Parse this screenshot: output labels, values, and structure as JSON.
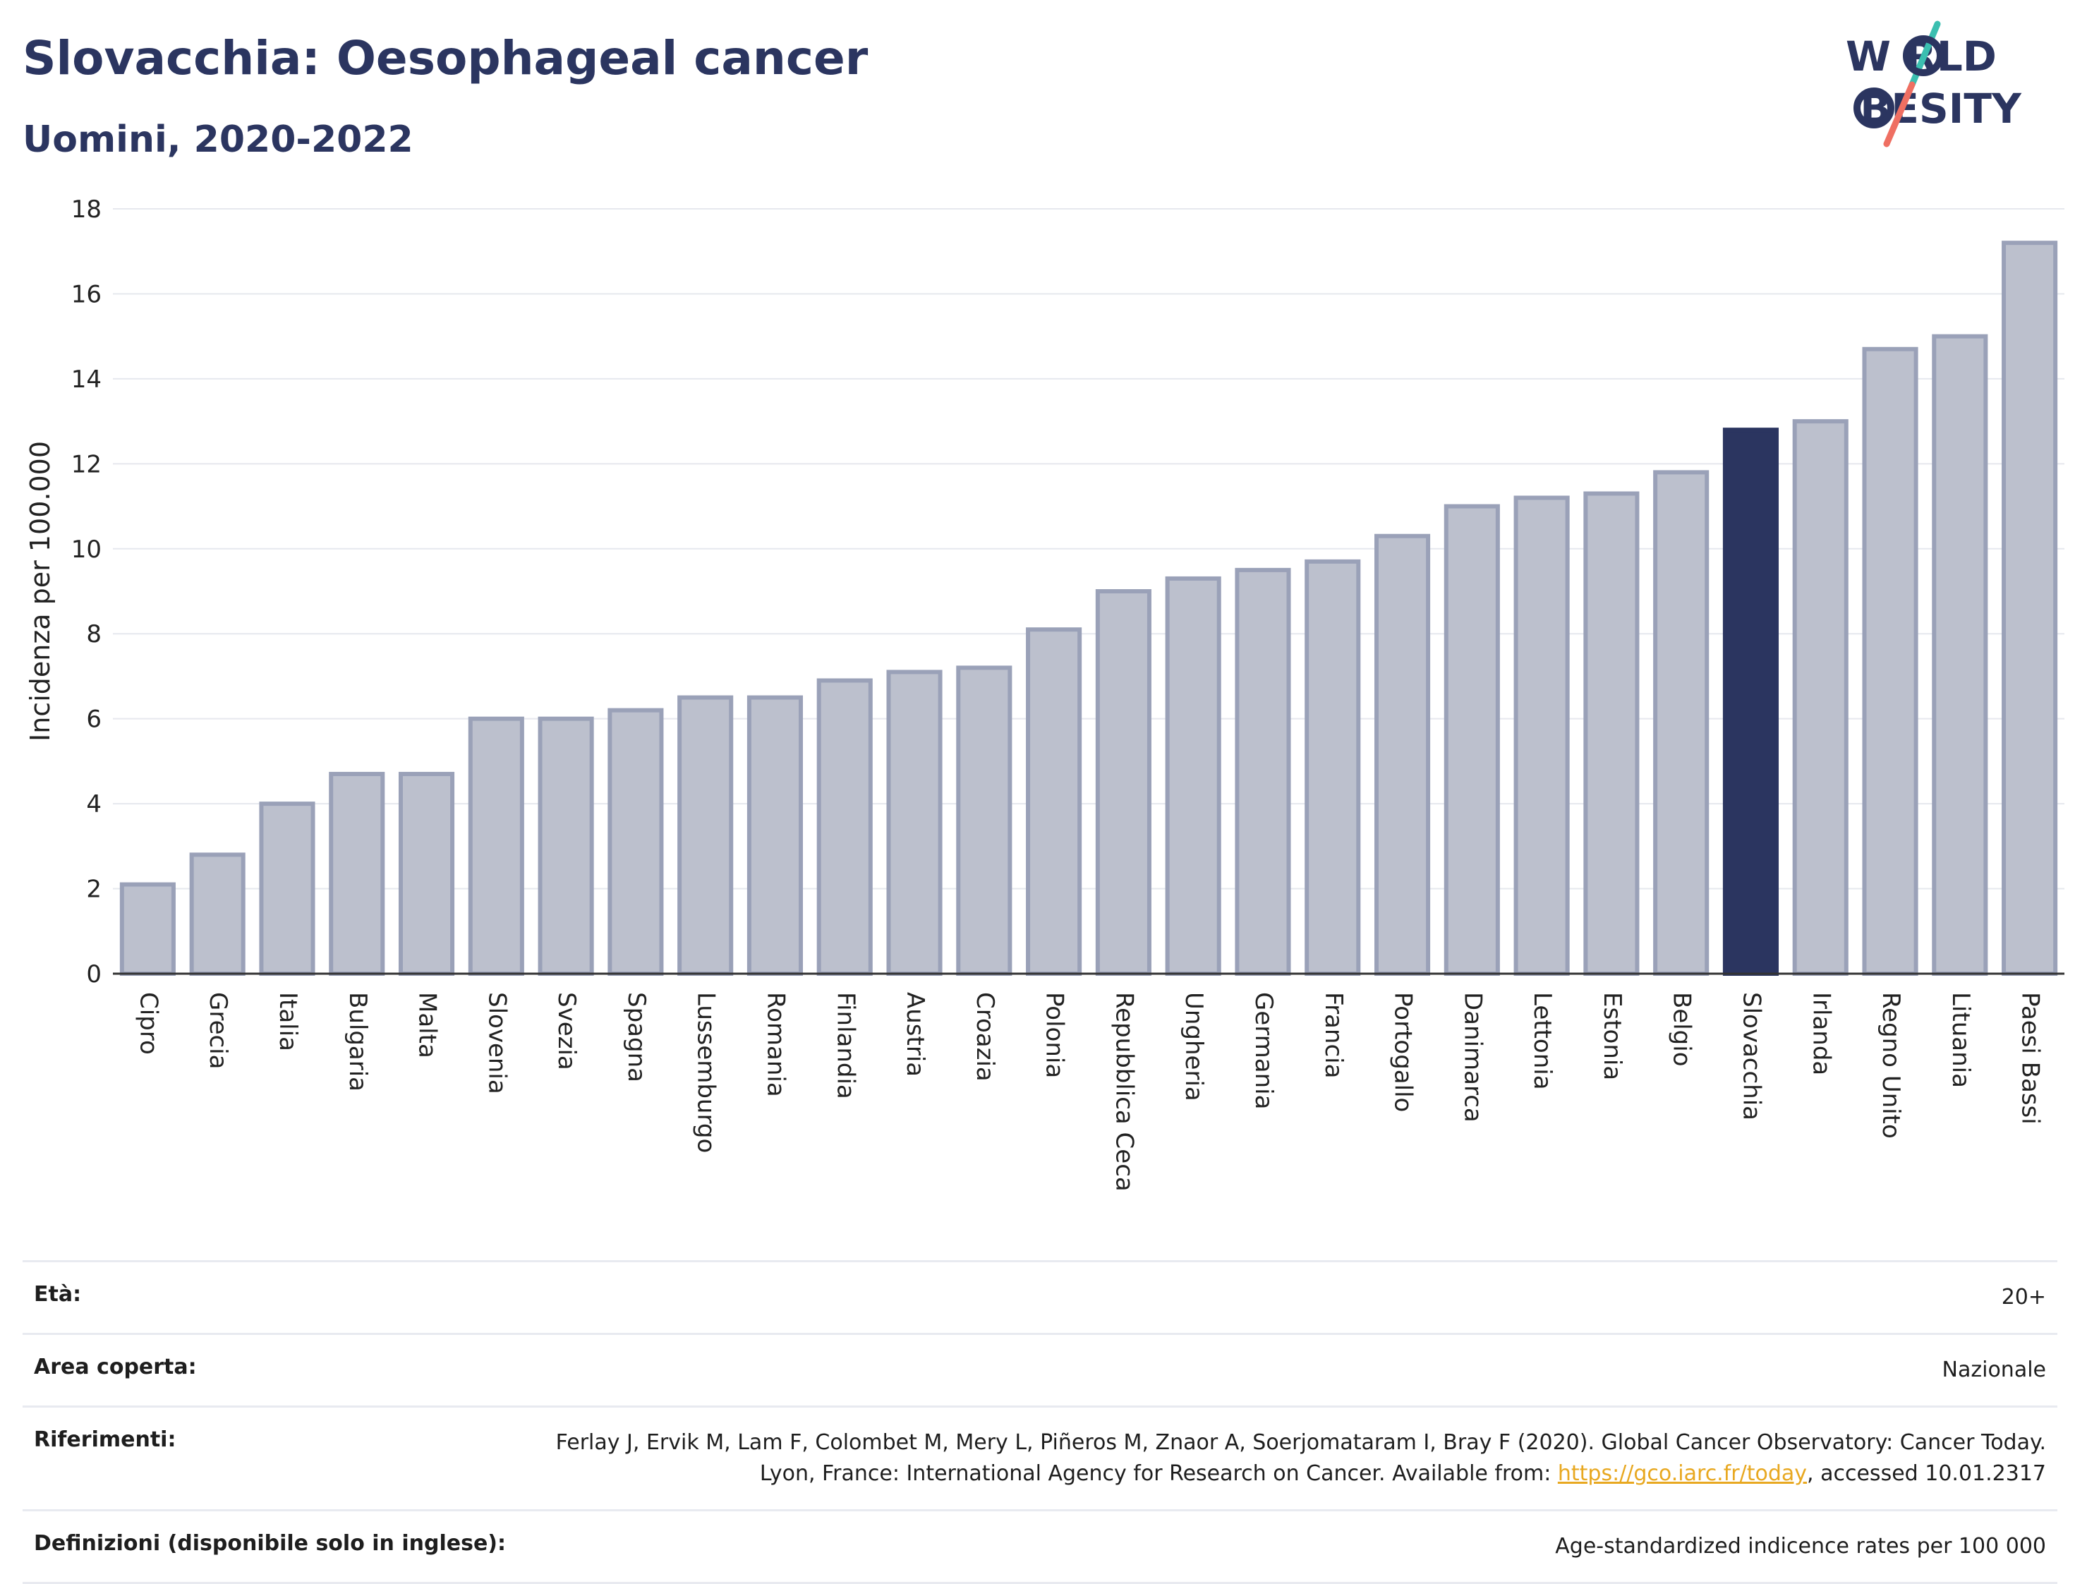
{
  "header": {
    "title": "Slovacchia: Oesophageal cancer",
    "subtitle": "Uomini, 2020-2022"
  },
  "logo": {
    "line1": "W RLD",
    "line2": " BESITY",
    "colors": {
      "text": "#2b3560",
      "slash_top": "#3bbfb0",
      "slash_bottom": "#ef6f62"
    }
  },
  "chart_data": {
    "type": "bar",
    "title": "Slovacchia: Oesophageal cancer",
    "subtitle": "Uomini, 2020-2022",
    "ylabel": "Incidenza per 100.000",
    "xlabel": "",
    "ylim": [
      0,
      18
    ],
    "yticks": [
      0,
      2,
      4,
      6,
      8,
      10,
      12,
      14,
      16,
      18
    ],
    "grid": true,
    "highlight": "Slovacchia",
    "colors": {
      "bar": "#bcc0cd",
      "bar_edge": "#9aa1b8",
      "highlight": "#2b3560"
    },
    "categories": [
      "Cipro",
      "Grecia",
      "Italia",
      "Bulgaria",
      "Malta",
      "Slovenia",
      "Svezia",
      "Spagna",
      "Lussemburgo",
      "Romania",
      "Finlandia",
      "Austria",
      "Croazia",
      "Polonia",
      "Repubblica Ceca",
      "Ungheria",
      "Germania",
      "Francia",
      "Portogallo",
      "Danimarca",
      "Lettonia",
      "Estonia",
      "Belgio",
      "Slovacchia",
      "Irlanda",
      "Regno Unito",
      "Lituania",
      "Paesi Bassi"
    ],
    "values": [
      2.1,
      2.8,
      4.0,
      4.7,
      4.7,
      6.0,
      6.0,
      6.2,
      6.5,
      6.5,
      6.9,
      7.1,
      7.2,
      8.1,
      9.0,
      9.3,
      9.5,
      9.7,
      10.3,
      11.0,
      11.2,
      11.3,
      11.8,
      12.8,
      13.0,
      14.7,
      15.0,
      17.2
    ]
  },
  "info": {
    "age_label": "Età:",
    "age_value": "20+",
    "area_label": "Area coperta:",
    "area_value": "Nazionale",
    "refs_label": "Riferimenti:",
    "refs_text_1": "Ferlay J, Ervik M, Lam F, Colombet M, Mery L, Piñeros M, Znaor A, Soerjomataram I, Bray F (2020). Global Cancer Observatory: Cancer Today. Lyon, France: International Agency for Research on Cancer. Available from: ",
    "refs_link": "https://gco.iarc.fr/today",
    "refs_text_2": ", accessed 10.01.2317",
    "defs_label": "Definizioni (disponibile solo in inglese):",
    "defs_value": "Age-standardized indicence rates per 100 000"
  }
}
